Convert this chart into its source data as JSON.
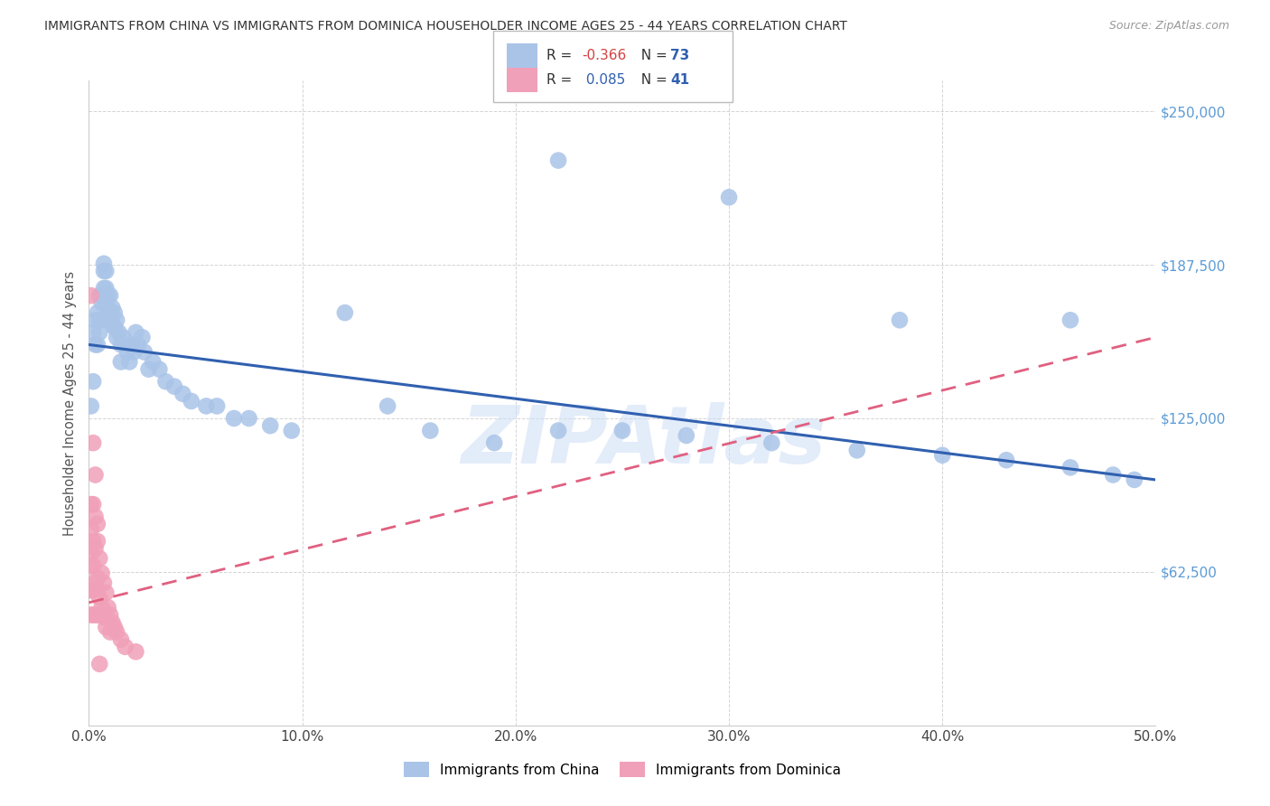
{
  "title": "IMMIGRANTS FROM CHINA VS IMMIGRANTS FROM DOMINICA HOUSEHOLDER INCOME AGES 25 - 44 YEARS CORRELATION CHART",
  "source": "Source: ZipAtlas.com",
  "ylabel": "Householder Income Ages 25 - 44 years",
  "xlim": [
    0.0,
    0.5
  ],
  "ylim": [
    0,
    262500
  ],
  "yticks": [
    0,
    62500,
    125000,
    187500,
    250000
  ],
  "ytick_labels": [
    "",
    "$62,500",
    "$125,000",
    "$187,500",
    "$250,000"
  ],
  "xticks": [
    0.0,
    0.1,
    0.2,
    0.3,
    0.4,
    0.5
  ],
  "xtick_labels": [
    "0.0%",
    "10.0%",
    "20.0%",
    "30.0%",
    "40.0%",
    "50.0%"
  ],
  "china_color": "#aac4e8",
  "dominica_color": "#f0a0b8",
  "china_line_color": "#3060b0",
  "dominica_line_color": "#e06080",
  "background_color": "#ffffff",
  "grid_color": "#d0d0d0",
  "watermark": "ZIPAtlas",
  "china_line_y0": 155000,
  "china_line_y1": 100000,
  "dominica_line_y0": 50000,
  "dominica_line_y1": 158000,
  "china_x": [
    0.001,
    0.002,
    0.002,
    0.003,
    0.003,
    0.004,
    0.004,
    0.005,
    0.005,
    0.005,
    0.006,
    0.006,
    0.007,
    0.007,
    0.007,
    0.008,
    0.008,
    0.008,
    0.009,
    0.009,
    0.01,
    0.01,
    0.01,
    0.011,
    0.011,
    0.012,
    0.012,
    0.013,
    0.013,
    0.014,
    0.015,
    0.015,
    0.016,
    0.017,
    0.018,
    0.019,
    0.02,
    0.021,
    0.022,
    0.023,
    0.025,
    0.026,
    0.028,
    0.03,
    0.033,
    0.036,
    0.04,
    0.044,
    0.048,
    0.055,
    0.06,
    0.068,
    0.075,
    0.085,
    0.095,
    0.12,
    0.14,
    0.16,
    0.19,
    0.22,
    0.25,
    0.28,
    0.32,
    0.36,
    0.4,
    0.43,
    0.46,
    0.48,
    0.49,
    0.22,
    0.3,
    0.38,
    0.46
  ],
  "china_y": [
    130000,
    160000,
    140000,
    155000,
    165000,
    168000,
    155000,
    175000,
    165000,
    160000,
    172000,
    165000,
    188000,
    185000,
    178000,
    185000,
    178000,
    172000,
    175000,
    168000,
    175000,
    168000,
    165000,
    170000,
    163000,
    168000,
    162000,
    165000,
    158000,
    160000,
    155000,
    148000,
    158000,
    155000,
    152000,
    148000,
    155000,
    152000,
    160000,
    155000,
    158000,
    152000,
    145000,
    148000,
    145000,
    140000,
    138000,
    135000,
    132000,
    130000,
    130000,
    125000,
    125000,
    122000,
    120000,
    168000,
    130000,
    120000,
    115000,
    120000,
    120000,
    118000,
    115000,
    112000,
    110000,
    108000,
    105000,
    102000,
    100000,
    230000,
    215000,
    165000,
    165000
  ],
  "dominica_x": [
    0.001,
    0.001,
    0.001,
    0.001,
    0.001,
    0.001,
    0.002,
    0.002,
    0.002,
    0.002,
    0.002,
    0.003,
    0.003,
    0.003,
    0.003,
    0.004,
    0.004,
    0.004,
    0.005,
    0.005,
    0.006,
    0.006,
    0.007,
    0.007,
    0.008,
    0.008,
    0.009,
    0.01,
    0.01,
    0.011,
    0.012,
    0.013,
    0.015,
    0.017,
    0.022,
    0.001,
    0.002,
    0.003,
    0.004,
    0.005
  ],
  "dominica_y": [
    90000,
    80000,
    70000,
    65000,
    55000,
    45000,
    90000,
    75000,
    65000,
    55000,
    45000,
    85000,
    72000,
    58000,
    45000,
    75000,
    60000,
    45000,
    68000,
    52000,
    62000,
    48000,
    58000,
    44000,
    54000,
    40000,
    48000,
    45000,
    38000,
    42000,
    40000,
    38000,
    35000,
    32000,
    30000,
    175000,
    115000,
    102000,
    82000,
    25000
  ]
}
